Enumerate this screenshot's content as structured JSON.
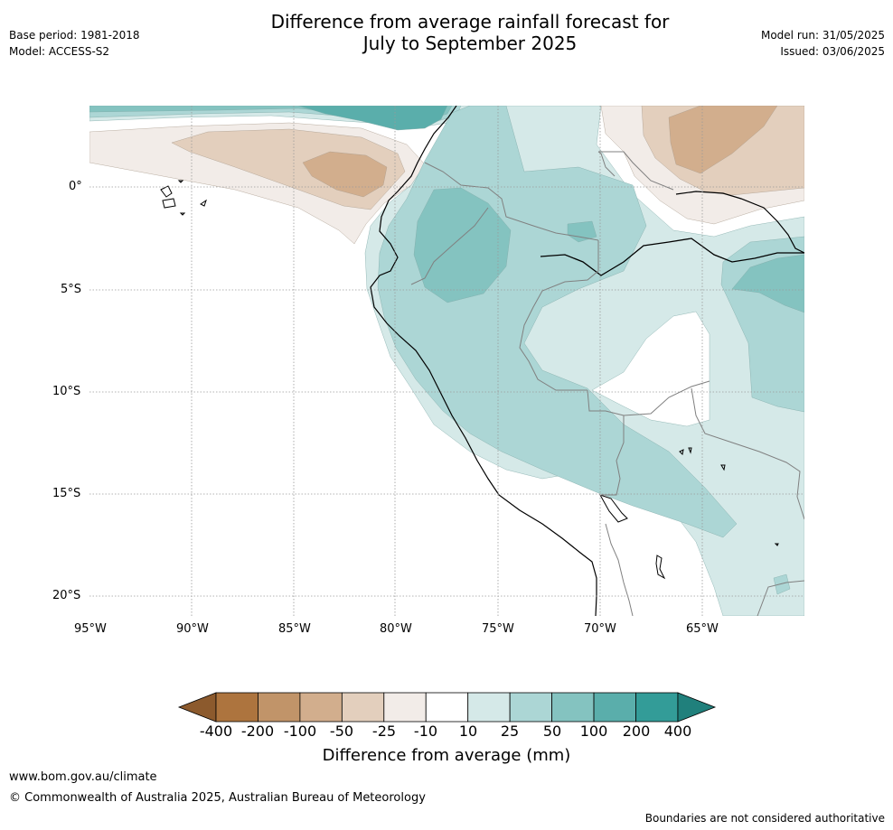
{
  "header": {
    "title_line1": "Difference from average rainfall forecast for",
    "title_line2": "July to September 2025",
    "base_period": "Base period: 1981-2018",
    "model": "Model: ACCESS-S2",
    "model_run": "Model run: 31/05/2025",
    "issued": "Issued: 03/06/2025"
  },
  "map": {
    "lon_labels": [
      "95°W",
      "90°W",
      "85°W",
      "80°W",
      "75°W",
      "70°W",
      "65°W"
    ],
    "lat_labels": [
      "0°",
      "5°S",
      "10°S",
      "15°S",
      "20°S"
    ],
    "grid": "dotted",
    "colors": {
      "coastline": "#000000",
      "borders": "#808080",
      "gridline": "#9a9a9a"
    }
  },
  "colorbar": {
    "ticks": [
      "-400",
      "-200",
      "-100",
      "-50",
      "-25",
      "-10",
      "10",
      "25",
      "50",
      "100",
      "200",
      "400"
    ],
    "colors": [
      "#8c5a2d",
      "#ad743e",
      "#c19469",
      "#d2ae8d",
      "#e3cfbd",
      "#f2ece8",
      "#ffffff",
      "#d5e9e8",
      "#acd6d5",
      "#84c3c0",
      "#5aaeab",
      "#339c98",
      "#20807c"
    ],
    "title": "Difference from average (mm)"
  },
  "footer": {
    "website": "www.bom.gov.au/climate",
    "copyright": "© Commonwealth of Australia 2025, Australian Bureau of Meteorology",
    "disclaimer": "Boundaries are not considered authoritative"
  }
}
